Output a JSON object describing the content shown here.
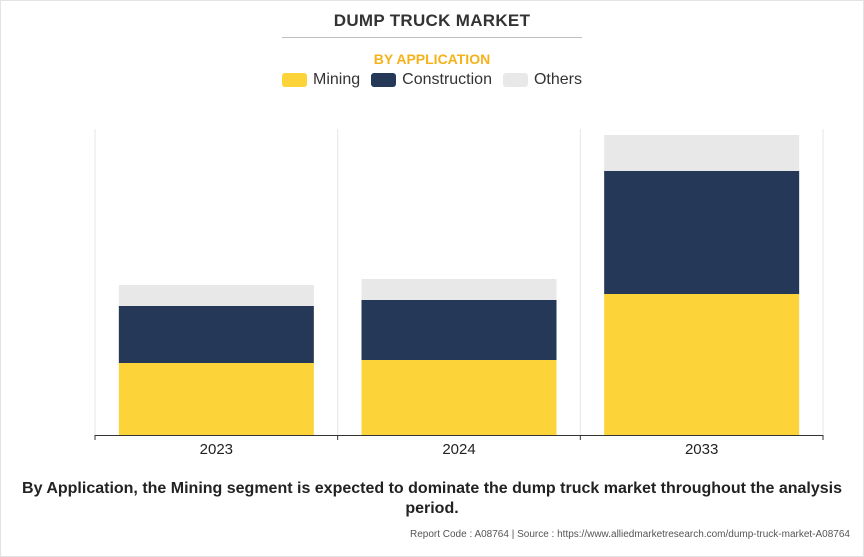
{
  "title": "DUMP TRUCK MARKET",
  "subtitle": "BY APPLICATION",
  "legend": [
    {
      "name": "Mining",
      "color": "#fdd33a"
    },
    {
      "name": "Construction",
      "color": "#253858"
    },
    {
      "name": "Others",
      "color": "#e8e8e8"
    }
  ],
  "chart_data": {
    "type": "bar",
    "stacked": true,
    "categories": [
      "2023",
      "2024",
      "2033"
    ],
    "series": [
      {
        "name": "Mining",
        "values": [
          72,
          75,
          141
        ]
      },
      {
        "name": "Construction",
        "values": [
          57,
          60,
          123
        ]
      },
      {
        "name": "Others",
        "values": [
          21,
          21,
          36
        ]
      }
    ],
    "ylim": [
      0,
      300
    ],
    "grid": true,
    "legend_position": "top-center",
    "xlabel": "",
    "ylabel": ""
  },
  "caption": "By Application, the Mining segment is expected to dominate the dump truck market throughout the analysis period.",
  "source": "Report Code : A08764  |  Source : https://www.alliedmarketresearch.com/dump-truck-market-A08764"
}
